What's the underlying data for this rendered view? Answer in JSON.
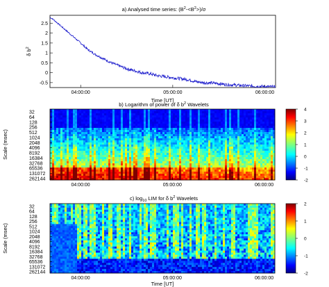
{
  "chart_data": [
    {
      "type": "line",
      "title_parts": [
        "a) Analysed time series: (B",
        "2",
        "-<B",
        "2",
        ">)/σ"
      ],
      "xlabel": "Time [UT]",
      "ylabel_parts": [
        "δ b",
        "2"
      ],
      "x_ticks": [
        "04:00:00",
        "05:00:00",
        "06:00:00"
      ],
      "y_ticks": [
        "2.5",
        "2",
        "1.5",
        "1",
        "0.5",
        "0",
        "-0.5"
      ],
      "ylim": [
        -0.75,
        2.9
      ],
      "line_color": "#1a1acc",
      "series": [
        {
          "x_minutes_after_0340": [
            0,
            2,
            5,
            8,
            11,
            14,
            17,
            20,
            25,
            30,
            35,
            40,
            45,
            50,
            55,
            60,
            65,
            70,
            75,
            80,
            85,
            90,
            95,
            100,
            105,
            110,
            115,
            120,
            125,
            130,
            135,
            140,
            145
          ],
          "values": [
            2.8,
            2.7,
            2.5,
            2.3,
            2.1,
            1.9,
            1.7,
            1.5,
            1.15,
            0.9,
            0.7,
            0.5,
            0.35,
            0.2,
            0.1,
            0.0,
            -0.05,
            -0.15,
            -0.2,
            -0.25,
            -0.3,
            -0.35,
            -0.45,
            -0.5,
            -0.52,
            -0.55,
            -0.6,
            -0.62,
            -0.65,
            -0.67,
            -0.68,
            -0.7,
            -0.72
          ]
        }
      ]
    },
    {
      "type": "heatmap",
      "title_parts": [
        "b) Logarithm of  power of δ b",
        "2",
        " Wavelets"
      ],
      "xlabel": "Time [UT]",
      "ylabel": "Scale (msec)",
      "x_ticks": [
        "04:00:00",
        "05:00:00",
        "06:00:00"
      ],
      "y_ticks": [
        "32",
        "64",
        "128",
        "256",
        "512",
        "1024",
        "2048",
        "4096",
        "8192",
        "16384",
        "32768",
        "65536",
        "131072",
        "262144"
      ],
      "colorbar_range": [
        -2,
        4
      ],
      "colorbar_ticks": [
        "4",
        "3",
        "2",
        "1",
        "0",
        "-1",
        "-2"
      ]
    },
    {
      "type": "heatmap",
      "title_parts": [
        "c) log",
        "10",
        " LIM for δ b",
        "2",
        " Wavelets"
      ],
      "xlabel": "Time [UT]",
      "ylabel": "Scale (msec)",
      "x_ticks": [
        "04:00:00",
        "05:00:00",
        "06:00:00"
      ],
      "y_ticks": [
        "32",
        "64",
        "128",
        "256",
        "512",
        "1024",
        "2048",
        "4096",
        "8192",
        "16384",
        "32768",
        "65536",
        "131072",
        "262144"
      ],
      "colorbar_range": [
        -2,
        2
      ],
      "colorbar_ticks": [
        "2",
        "1",
        "0",
        "-1",
        "-2"
      ]
    }
  ]
}
